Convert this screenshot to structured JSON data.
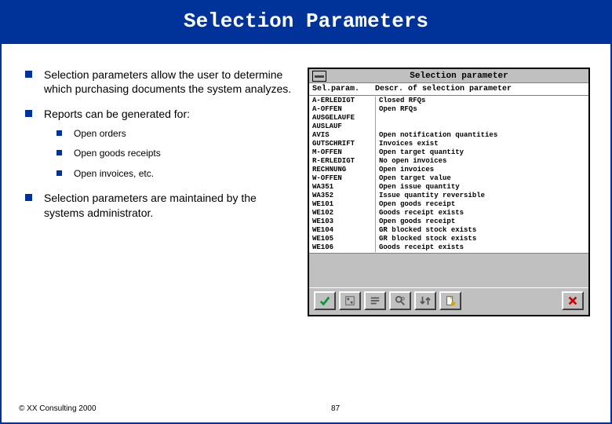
{
  "slide": {
    "title": "Selection Parameters",
    "footer": "© XX Consulting 2000",
    "page_number": "87",
    "colors": {
      "header_bg": "#003399",
      "header_text": "#ffffff",
      "bullet": "#003399",
      "body_text": "#000000",
      "border": "#003399"
    },
    "bullets": [
      {
        "text": "Selection parameters allow the user to determine which purchasing documents the system analyzes."
      },
      {
        "text": "Reports can be generated for:",
        "sub": [
          "Open orders",
          "Open goods receipts",
          "Open invoices, etc."
        ]
      },
      {
        "text": "Selection parameters are maintained by the systems administrator."
      }
    ]
  },
  "sap_window": {
    "title": "Selection parameter",
    "colors": {
      "chrome_bg": "#c0c0c0",
      "body_bg": "#ffffff",
      "border": "#000000",
      "ok_green": "#009933",
      "cancel_red": "#cc0000",
      "icon_gray": "#555555",
      "icon_yellow": "#d4a800"
    },
    "columns": [
      "Sel.param.",
      "Descr. of selection parameter"
    ],
    "rows": [
      [
        "A-ERLEDIGT",
        "Closed RFQs"
      ],
      [
        "A-OFFEN",
        "Open RFQs"
      ],
      [
        "AUSGELAUFE",
        ""
      ],
      [
        "AUSLAUF",
        ""
      ],
      [
        "AVIS",
        "Open notification quantities"
      ],
      [
        "GUTSCHRIFT",
        "Invoices exist"
      ],
      [
        "M-OFFEN",
        "Open target quantity"
      ],
      [
        "R-ERLEDIGT",
        "No open invoices"
      ],
      [
        "RECHNUNG",
        "Open invoices"
      ],
      [
        "W-OFFEN",
        "Open target value"
      ],
      [
        "WA351",
        "Open issue quantity"
      ],
      [
        "WA352",
        "Issue quantity reversible"
      ],
      [
        "WE101",
        "Open goods receipt"
      ],
      [
        "WE102",
        "Goods receipt exists"
      ],
      [
        "WE103",
        "Open goods receipt"
      ],
      [
        "WE104",
        "GR blocked stock exists"
      ],
      [
        "WE105",
        "GR blocked stock exists"
      ],
      [
        "WE106",
        "Goods receipt exists"
      ]
    ],
    "toolbar": [
      {
        "name": "ok-icon",
        "interactable": true
      },
      {
        "name": "choose-icon",
        "interactable": true
      },
      {
        "name": "details-icon",
        "interactable": true
      },
      {
        "name": "find-icon",
        "interactable": true
      },
      {
        "name": "sort-icon",
        "interactable": true
      },
      {
        "name": "new-icon",
        "interactable": true
      },
      {
        "name": "cancel-icon",
        "interactable": true
      }
    ]
  }
}
